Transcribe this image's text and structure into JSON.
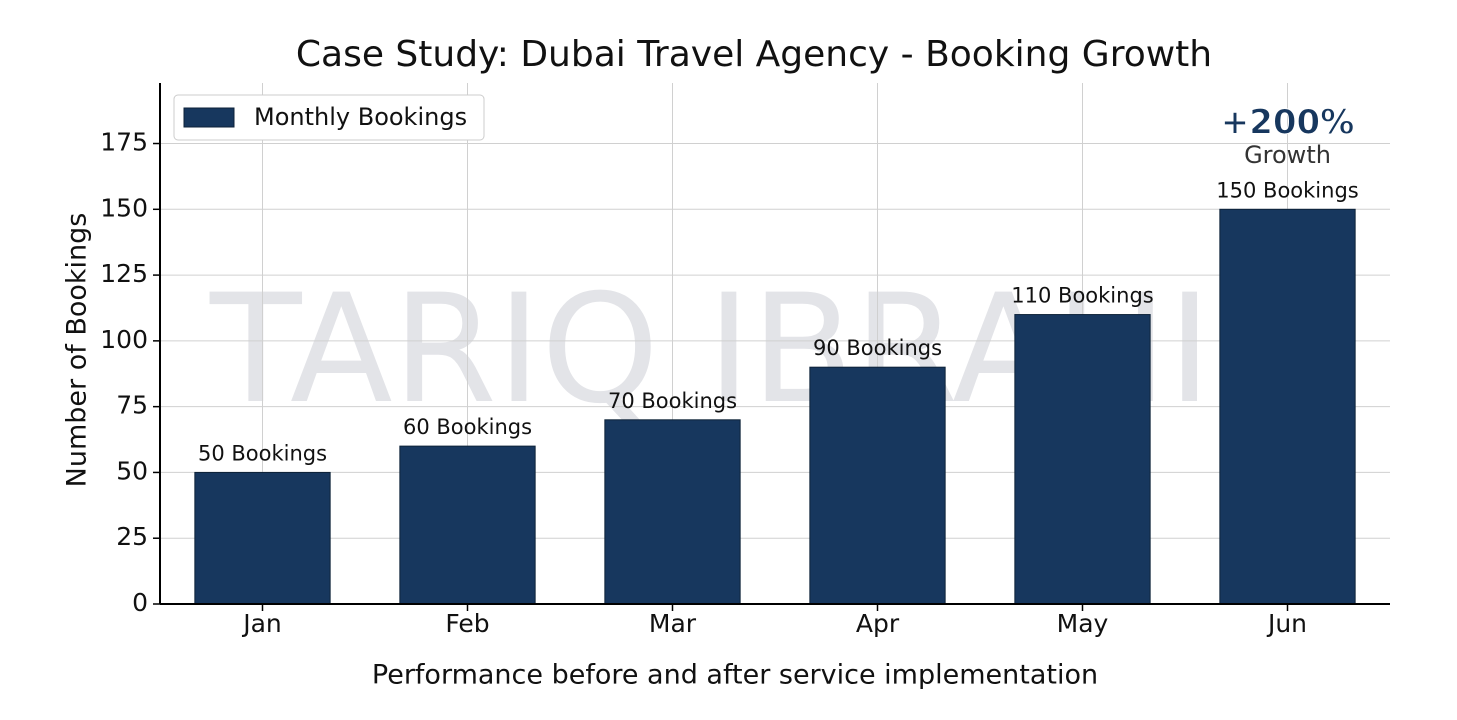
{
  "chart_data": {
    "type": "bar",
    "title": "Case Study: Dubai Travel Agency - Booking Growth",
    "x_label": "Performance before and after service implementation",
    "y_label": "Number of Bookings",
    "categories": [
      "Jan",
      "Feb",
      "Mar",
      "Apr",
      "May",
      "Jun"
    ],
    "series": [
      {
        "name": "Monthly Bookings",
        "color": "#17375e",
        "values": [
          50,
          60,
          70,
          90,
          110,
          150
        ],
        "value_labels": [
          "50 Bookings",
          "60 Bookings",
          "70 Bookings",
          "90 Bookings",
          "110 Bookings",
          "150 Bookings"
        ]
      }
    ],
    "ylim": [
      0,
      198
    ],
    "yticks": [
      0,
      25,
      50,
      75,
      100,
      125,
      150,
      175
    ],
    "grid": true,
    "legend": "upper left",
    "annotation": {
      "headline": "+200%",
      "text": "Growth"
    },
    "watermark": "TARIQ IBRAHIM"
  }
}
